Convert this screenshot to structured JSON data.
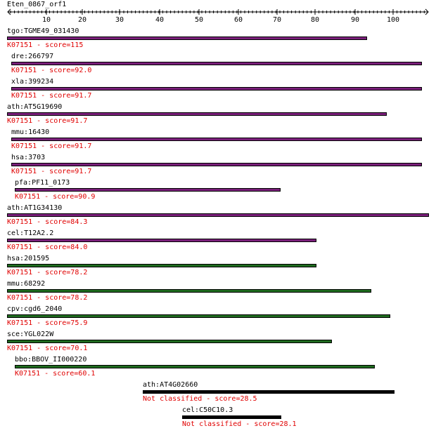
{
  "query": {
    "title": "Eten_0867_orf1"
  },
  "ruler": {
    "ticks": [
      "10",
      "20",
      "30",
      "40",
      "50",
      "60",
      "70",
      "80",
      "90",
      "100"
    ]
  },
  "colors": {
    "purple": "#7a1f7a",
    "green": "#1f6b1f",
    "black": "#000000",
    "score_text": "#e00000"
  },
  "hits": [
    {
      "name": "tgo:TGME49_031430",
      "score": "K07151 - score=115",
      "color": "purple"
    },
    {
      "name": "dre:266797",
      "score": "K07151 - score=92.0",
      "color": "purple"
    },
    {
      "name": "xla:399234",
      "score": "K07151 - score=91.7",
      "color": "purple"
    },
    {
      "name": "ath:AT5G19690",
      "score": "K07151 - score=91.7",
      "color": "purple"
    },
    {
      "name": "mmu:16430",
      "score": "K07151 - score=91.7",
      "color": "purple"
    },
    {
      "name": "hsa:3703",
      "score": "K07151 - score=91.7",
      "color": "purple"
    },
    {
      "name": "pfa:PF11_0173",
      "score": "K07151 - score=90.9",
      "color": "purple"
    },
    {
      "name": "ath:AT1G34130",
      "score": "K07151 - score=84.3",
      "color": "purple"
    },
    {
      "name": "cel:T12A2.2",
      "score": "K07151 - score=84.0",
      "color": "purple"
    },
    {
      "name": "hsa:201595",
      "score": "K07151 - score=78.2",
      "color": "green"
    },
    {
      "name": "mmu:68292",
      "score": "K07151 - score=78.2",
      "color": "green"
    },
    {
      "name": "cpv:cgd6_2040",
      "score": "K07151 - score=75.9",
      "color": "green"
    },
    {
      "name": "sce:YGL022W",
      "score": "K07151 - score=70.1",
      "color": "green"
    },
    {
      "name": "bbo:BBOV_II000220",
      "score": "K07151 - score=60.1",
      "color": "green"
    },
    {
      "name": "ath:AT4G02660",
      "score": "Not classified - score=28.5",
      "color": "black"
    },
    {
      "name": "cel:C50C10.3",
      "score": "Not classified - score=28.1",
      "color": "black"
    }
  ]
}
